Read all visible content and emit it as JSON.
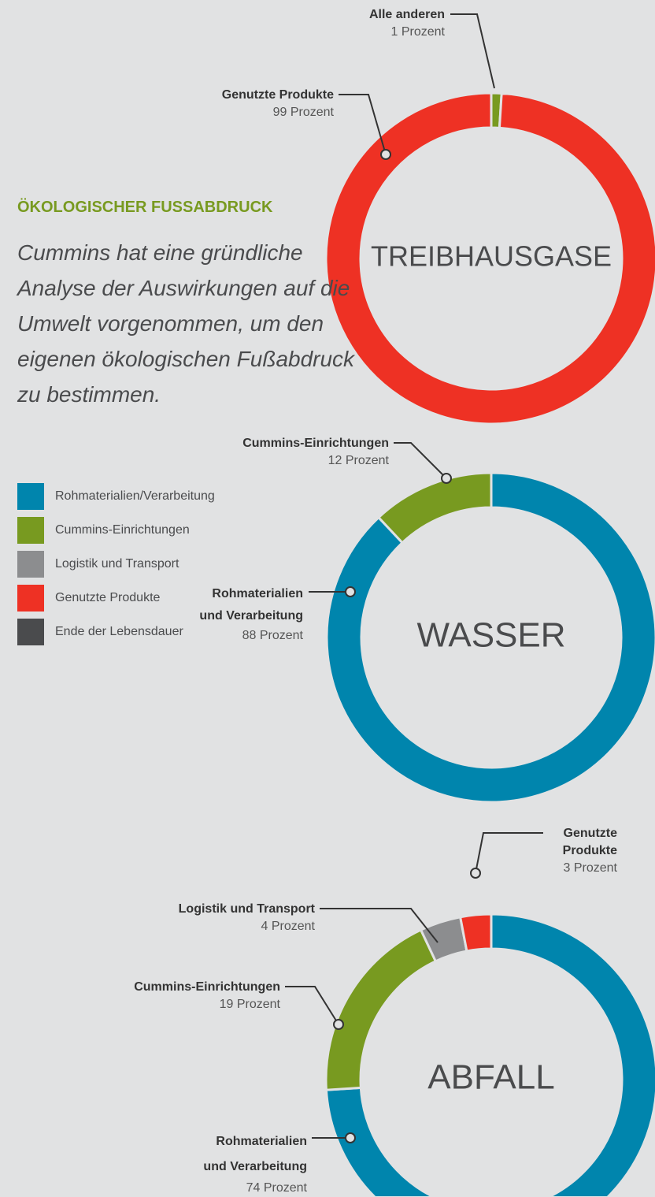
{
  "heading": "ÖKOLOGISCHER FUSSABDRUCK",
  "description": "Cummins hat eine gründliche Analyse der Auswirkungen auf die Umwelt vorgenommen, um den eigenen ökologischen Fußabdruck zu bestimmen.",
  "legend": [
    {
      "name": "Rohmaterialien/Verarbeitung",
      "color": "#0085ad"
    },
    {
      "name": "Cummins-Einrichtungen",
      "color": "#789a20"
    },
    {
      "name": "Logistik und Transport",
      "color": "#8c8d8f"
    },
    {
      "name": "Genutzte Produkte",
      "color": "#ee3124"
    },
    {
      "name": "Ende der Lebensdauer",
      "color": "#4a4b4d"
    }
  ],
  "chart_data": [
    {
      "type": "donut",
      "title": "TREIBHAUSGASE",
      "categories": [
        "Alle anderen",
        "Genutzte Produkte"
      ],
      "values": [
        1,
        99
      ],
      "value_labels": [
        "1 Prozent",
        "99 Prozent"
      ],
      "colors": [
        "#789a20",
        "#ee3124"
      ]
    },
    {
      "type": "donut",
      "title": "WASSER",
      "categories": [
        "Rohmaterialien und Verarbeitung",
        "Cummins-Einrichtungen"
      ],
      "values": [
        88,
        12
      ],
      "value_labels": [
        "88 Prozent",
        "12 Prozent"
      ],
      "colors": [
        "#0085ad",
        "#789a20"
      ]
    },
    {
      "type": "donut",
      "title": "ABFALL",
      "categories": [
        "Rohmaterialien und Verarbeitung",
        "Cummins-Einrichtungen",
        "Logistik und Transport",
        "Genutzte Produkte"
      ],
      "values": [
        74,
        19,
        4,
        3
      ],
      "value_labels": [
        "74 Prozent",
        "19 Prozent",
        "4 Prozent",
        "3 Prozent"
      ],
      "colors": [
        "#0085ad",
        "#789a20",
        "#8c8d8f",
        "#ee3124"
      ]
    }
  ]
}
